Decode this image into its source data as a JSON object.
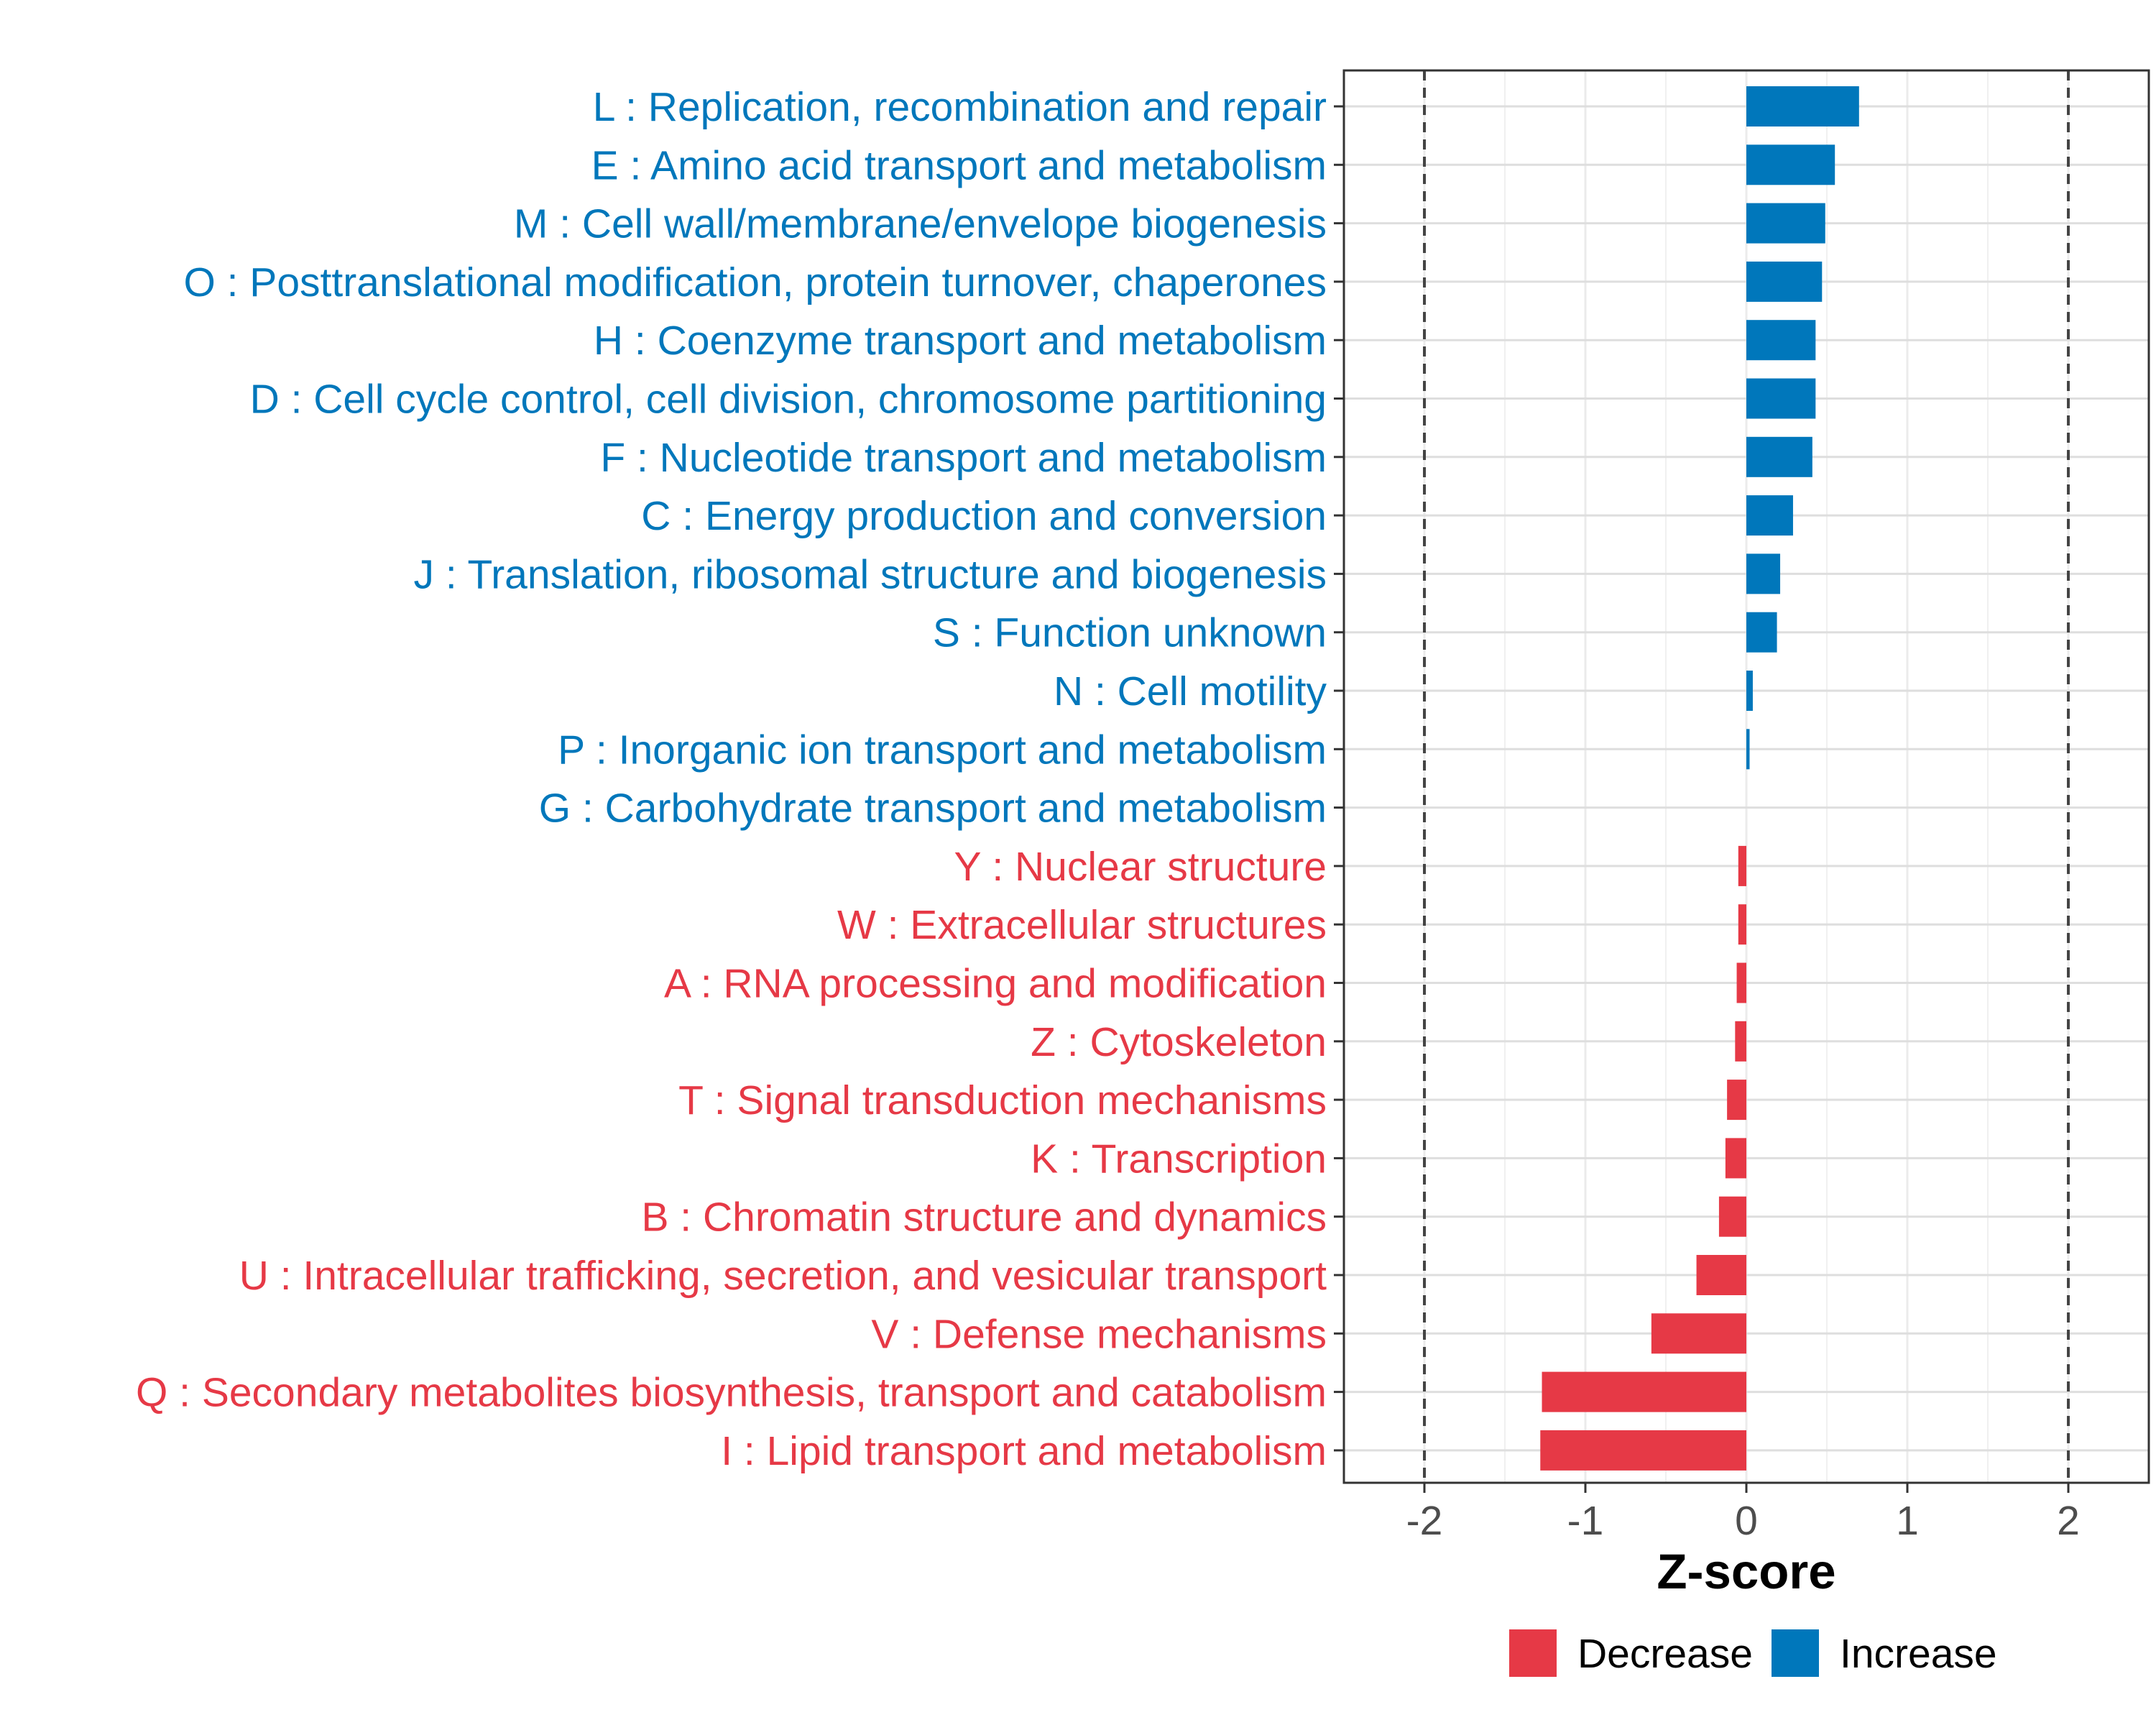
{
  "chart_data": {
    "type": "bar",
    "orientation": "horizontal",
    "xlabel": "Z-score",
    "ylabel": "",
    "xlim": [
      -2.5,
      2.5
    ],
    "xticks": [
      -2,
      -1,
      0,
      1,
      2
    ],
    "xtick_labels": [
      "-2",
      "-1",
      "0",
      "1",
      "2"
    ],
    "reference_lines": [
      -2,
      2
    ],
    "grid": true,
    "categories": [
      "L : Replication, recombination and repair",
      "E : Amino acid transport and metabolism",
      "M : Cell wall/membrane/envelope biogenesis",
      "O : Posttranslational modification, protein turnover, chaperones",
      "H : Coenzyme transport and metabolism",
      "D : Cell cycle control, cell division, chromosome partitioning",
      "F : Nucleotide transport and metabolism",
      "C : Energy production and conversion",
      "J : Translation, ribosomal structure and biogenesis",
      "S : Function unknown",
      "N : Cell motility",
      "P : Inorganic ion transport and metabolism",
      "G : Carbohydrate transport and metabolism",
      "Y : Nuclear structure",
      "W : Extracellular structures",
      "A : RNA processing and modification",
      "Z : Cytoskeleton",
      "T : Signal transduction mechanisms",
      "K : Transcription",
      "B : Chromatin structure and dynamics",
      "U : Intracellular trafficking, secretion, and vesicular transport",
      "V : Defense mechanisms",
      "Q : Secondary metabolites biosynthesis, transport and catabolism",
      "I : Lipid transport and metabolism"
    ],
    "values": [
      0.7,
      0.55,
      0.49,
      0.47,
      0.43,
      0.43,
      0.41,
      0.29,
      0.21,
      0.19,
      0.04,
      0.02,
      0.0,
      -0.05,
      -0.05,
      -0.06,
      -0.07,
      -0.12,
      -0.13,
      -0.17,
      -0.31,
      -0.59,
      -1.27,
      -1.28
    ],
    "groups": [
      "Increase",
      "Increase",
      "Increase",
      "Increase",
      "Increase",
      "Increase",
      "Increase",
      "Increase",
      "Increase",
      "Increase",
      "Increase",
      "Increase",
      "Increase",
      "Decrease",
      "Decrease",
      "Decrease",
      "Decrease",
      "Decrease",
      "Decrease",
      "Decrease",
      "Decrease",
      "Decrease",
      "Decrease",
      "Decrease"
    ],
    "legend": {
      "position": "bottom",
      "entries": [
        {
          "label": "Decrease",
          "color": "#e63946"
        },
        {
          "label": "Increase",
          "color": "#0077bb"
        }
      ]
    }
  }
}
